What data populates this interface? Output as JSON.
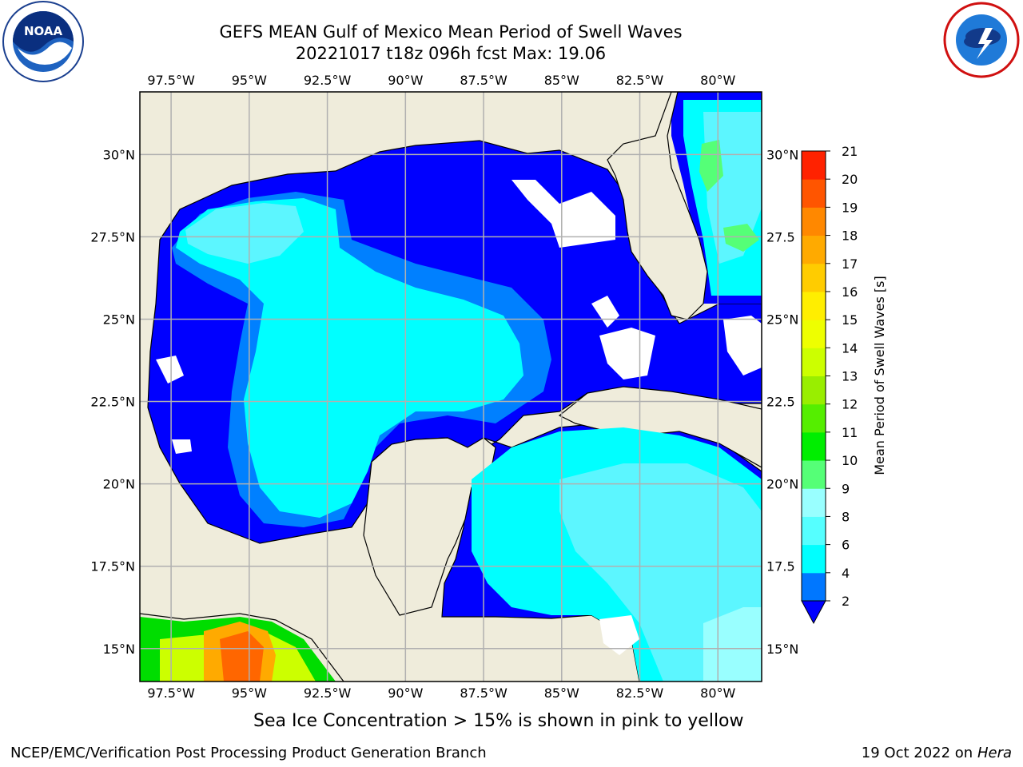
{
  "header": {
    "title_line1": "GEFS MEAN Gulf of Mexico Mean Period of Swell Waves",
    "title_line2": "20221017 t18z 096h fcst   Max: 19.06"
  },
  "logos": {
    "left": "noaa-logo",
    "right": "nws-logo"
  },
  "map": {
    "extent_lon": [
      -98.5,
      -78.6
    ],
    "extent_lat": [
      14,
      31.9
    ],
    "lon_ticks": [
      "97.5°W",
      "95°W",
      "92.5°W",
      "90°W",
      "87.5°W",
      "85°W",
      "82.5°W",
      "80°W"
    ],
    "lat_ticks_left": [
      "30°N",
      "27.5°N",
      "25°N",
      "22.5°N",
      "20°N",
      "17.5°N",
      "15°N"
    ],
    "lat_ticks_right": [
      "30°N",
      "27.5",
      "25°N",
      "22.5",
      "20°N",
      "17.5",
      "15°N"
    ],
    "land_color": "#efecdb",
    "grid_color": "#b0b0b0"
  },
  "colorbar": {
    "label": "Mean Period of Swell Waves [s]",
    "ticks": [
      "2",
      "4",
      "6",
      "8",
      "9",
      "10",
      "11",
      "12",
      "13",
      "14",
      "15",
      "16",
      "17",
      "18",
      "19",
      "20",
      "21"
    ],
    "colors": [
      "#0000ff",
      "#0077ff",
      "#00ffff",
      "#55ffff",
      "#99ffff",
      "#55ff77",
      "#00ee00",
      "#55ee00",
      "#99ee00",
      "#ccff00",
      "#eeff00",
      "#ffee00",
      "#ffcc00",
      "#ffaa00",
      "#ff8800",
      "#ff5500",
      "#ff2200",
      "#ff0000"
    ]
  },
  "notes": {
    "ice": "Sea Ice Concentration > 15% is shown in pink to yellow"
  },
  "footer": {
    "left": "NCEP/EMC/Verification Post Processing Product Generation Branch",
    "date": "19 Oct 2022 on ",
    "host": "Hera"
  }
}
